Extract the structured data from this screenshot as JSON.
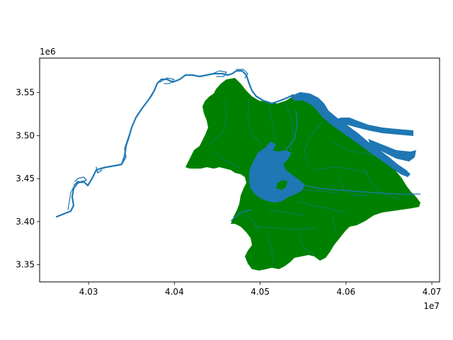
{
  "figure": {
    "x_offset_label": "1e7",
    "y_offset_label": "1e6"
  },
  "axes": {
    "x_ticks": [
      {
        "value": 4.03,
        "label": "4.03"
      },
      {
        "value": 4.04,
        "label": "4.04"
      },
      {
        "value": 4.05,
        "label": "4.05"
      },
      {
        "value": 4.06,
        "label": "4.06"
      },
      {
        "value": 4.07,
        "label": "4.07"
      }
    ],
    "y_ticks": [
      {
        "value": 3.35,
        "label": "3.35"
      },
      {
        "value": 3.4,
        "label": "3.40"
      },
      {
        "value": 3.45,
        "label": "3.45"
      },
      {
        "value": 3.5,
        "label": "3.50"
      },
      {
        "value": 3.55,
        "label": "3.55"
      }
    ],
    "x_range": [
      4.0243,
      4.0709
    ],
    "y_range": [
      3.33,
      3.59
    ]
  },
  "colors": {
    "land": "#008000",
    "water": "#1f77b4",
    "axis": "#000000"
  },
  "layers": [
    {
      "name": "land-districts",
      "color": "#008000"
    },
    {
      "name": "rivers-and-lakes",
      "color": "#1f77b4"
    }
  ]
}
